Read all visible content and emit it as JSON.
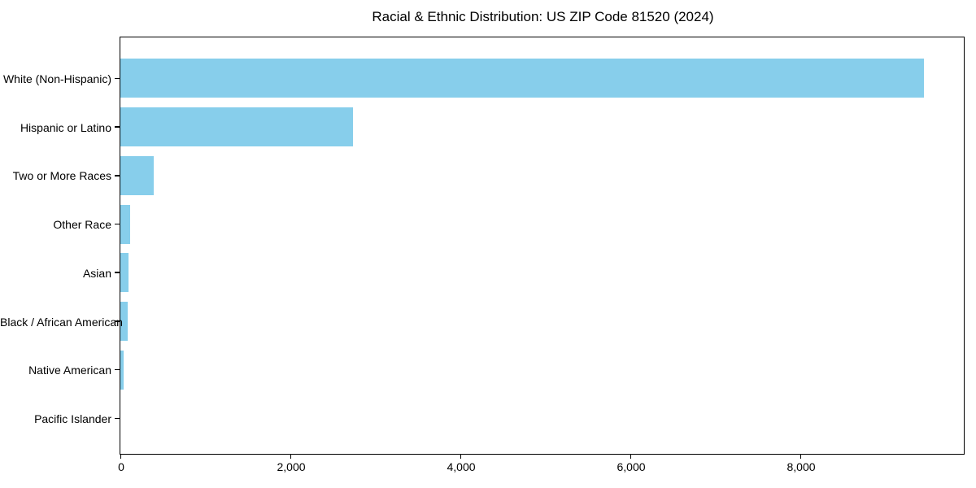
{
  "title": "Racial & Ethnic Distribution: US ZIP Code 81520 (2024)",
  "chart_data": {
    "type": "bar",
    "orientation": "horizontal",
    "title": "Racial & Ethnic Distribution: US ZIP Code 81520 (2024)",
    "categories": [
      "White (Non-Hispanic)",
      "Hispanic or Latino",
      "Two or More Races",
      "Other Race",
      "Asian",
      "Black / African American",
      "Native American",
      "Pacific Islander"
    ],
    "values": [
      9450,
      2730,
      385,
      110,
      95,
      85,
      30,
      0
    ],
    "xlabel": "",
    "ylabel": "",
    "xlim": [
      0,
      9923
    ],
    "xticks": [
      0,
      2000,
      4000,
      6000,
      8000
    ],
    "xtick_labels": [
      "0",
      "2,000",
      "4,000",
      "6,000",
      "8,000"
    ],
    "grid": false,
    "legend": null,
    "bar_color": "#87CEEB",
    "background_color": "#ffffff",
    "axis_color": "#000000"
  }
}
